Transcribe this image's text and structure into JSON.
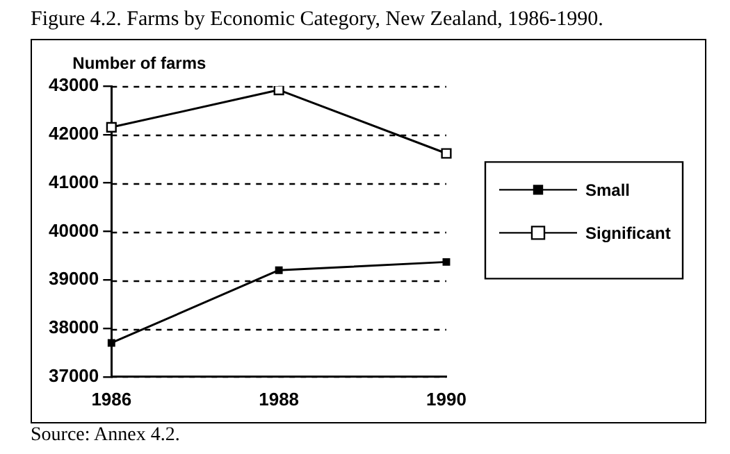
{
  "chart_data": {
    "type": "line",
    "title": "Figure 4.2. Farms by Economic Category, New Zealand, 1986-1990.",
    "ylabel": "Number of farms",
    "annotations": [
      "Source: Annex 4.2."
    ],
    "categories": [
      "1986",
      "1988",
      "1990"
    ],
    "series": [
      {
        "name": "Small",
        "color": "#000000",
        "values": [
          37700,
          39200,
          39370
        ]
      },
      {
        "name": "Significant",
        "color": "#000000",
        "values": [
          42150,
          42920,
          41610
        ]
      }
    ],
    "ylim": [
      37000,
      43000
    ],
    "yticks": [
      37000,
      38000,
      39000,
      40000,
      41000,
      42000,
      43000
    ],
    "grid": "y",
    "legend": "right",
    "marker": "square",
    "line_style": "solid"
  }
}
